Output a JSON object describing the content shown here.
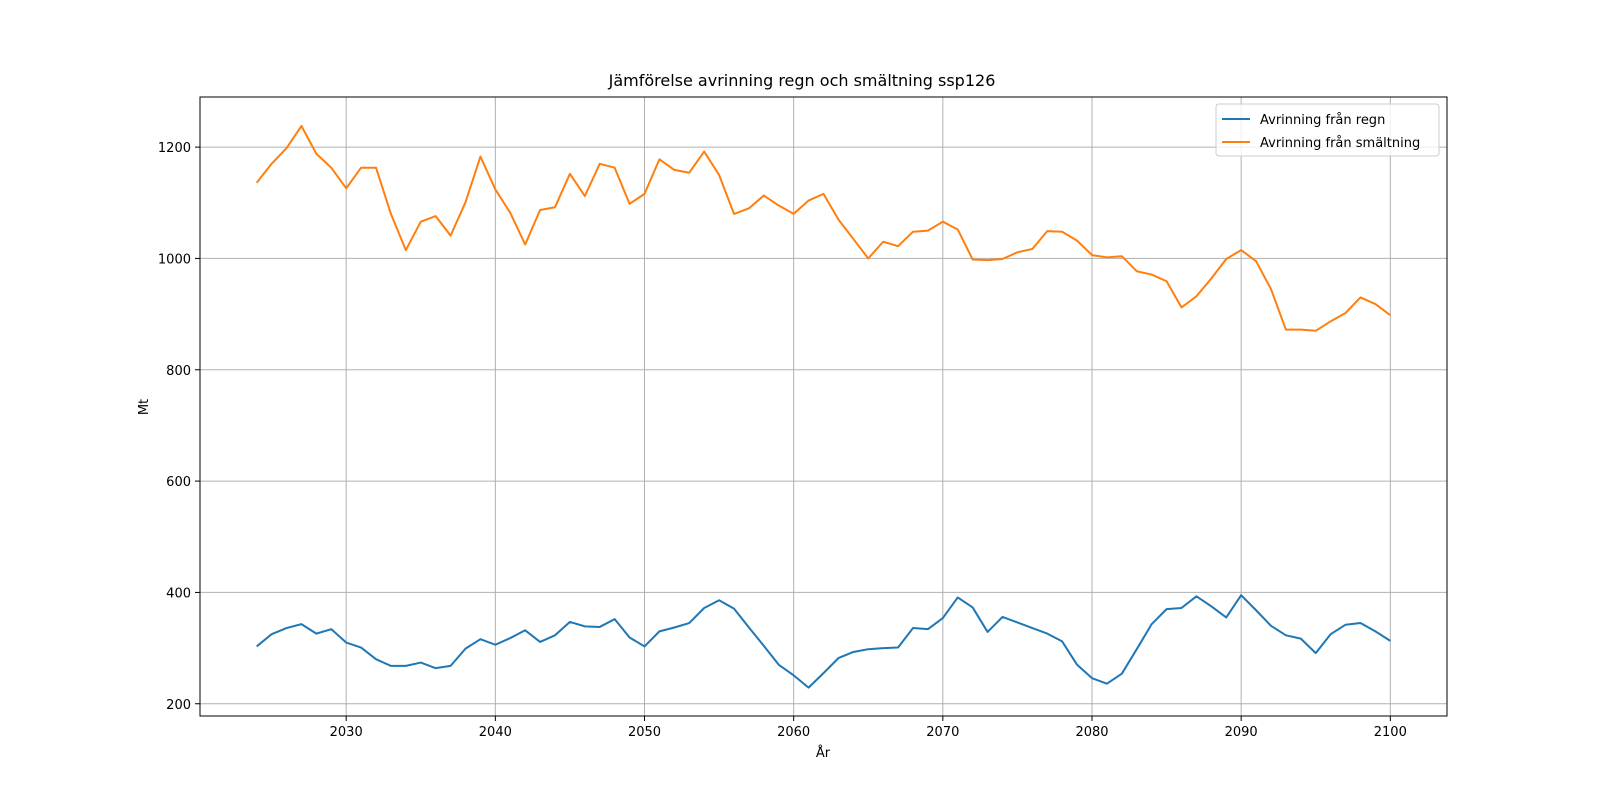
{
  "chart_data": {
    "type": "line",
    "title": "Jämförelse avrinning regn och smältning ssp126",
    "xlabel": "År",
    "ylabel": "Mt",
    "xlim": [
      2020.2,
      2103.8
    ],
    "ylim": [
      178,
      1290
    ],
    "xticks": [
      2030,
      2040,
      2050,
      2060,
      2070,
      2080,
      2090,
      2100
    ],
    "yticks": [
      200,
      400,
      600,
      800,
      1000,
      1200
    ],
    "grid": true,
    "legend_position": "top-right",
    "x": [
      2024,
      2025,
      2026,
      2027,
      2028,
      2029,
      2030,
      2031,
      2032,
      2033,
      2034,
      2035,
      2036,
      2037,
      2038,
      2039,
      2040,
      2041,
      2042,
      2043,
      2044,
      2045,
      2046,
      2047,
      2048,
      2049,
      2050,
      2051,
      2052,
      2053,
      2054,
      2055,
      2056,
      2057,
      2058,
      2059,
      2060,
      2061,
      2062,
      2063,
      2064,
      2065,
      2066,
      2067,
      2068,
      2069,
      2070,
      2071,
      2072,
      2073,
      2074,
      2075,
      2076,
      2077,
      2078,
      2079,
      2080,
      2081,
      2082,
      2083,
      2084,
      2085,
      2086,
      2087,
      2088,
      2089,
      2090,
      2091,
      2092,
      2093,
      2094,
      2095,
      2096,
      2097,
      2098,
      2099,
      2100
    ],
    "series": [
      {
        "name": "Avrinning från regn",
        "color": "#1f77b4",
        "values": [
          303,
          325,
          336,
          343,
          326,
          334,
          310,
          301,
          280,
          268,
          268,
          274,
          264,
          268,
          299,
          316,
          306,
          318,
          332,
          311,
          323,
          347,
          339,
          338,
          352,
          319,
          303,
          330,
          337,
          345,
          372,
          386,
          371,
          337,
          304,
          270,
          251,
          229,
          255,
          282,
          293,
          298,
          300,
          301,
          336,
          334,
          354,
          391,
          373,
          329,
          356,
          346,
          336,
          326,
          312,
          270,
          246,
          236,
          254,
          298,
          343,
          370,
          372,
          393,
          375,
          355,
          395,
          368,
          340,
          323,
          317,
          291,
          325,
          342,
          345,
          330,
          313
        ]
      },
      {
        "name": "Avrinning från smältning",
        "color": "#ff7f0e",
        "values": [
          1136,
          1170,
          1198,
          1238,
          1188,
          1163,
          1126,
          1163,
          1163,
          1080,
          1015,
          1066,
          1076,
          1041,
          1101,
          1183,
          1124,
          1082,
          1025,
          1087,
          1092,
          1152,
          1112,
          1170,
          1163,
          1098,
          1116,
          1178,
          1159,
          1154,
          1192,
          1150,
          1080,
          1090,
          1113,
          1095,
          1080,
          1104,
          1116,
          1070,
          1035,
          1000,
          1030,
          1022,
          1048,
          1050,
          1066,
          1052,
          998,
          997,
          999,
          1011,
          1017,
          1049,
          1048,
          1032,
          1006,
          1002,
          1004,
          977,
          971,
          959,
          912,
          932,
          964,
          999,
          1015,
          995,
          945,
          872,
          872,
          870,
          887,
          902,
          930,
          918,
          898
        ]
      }
    ]
  }
}
